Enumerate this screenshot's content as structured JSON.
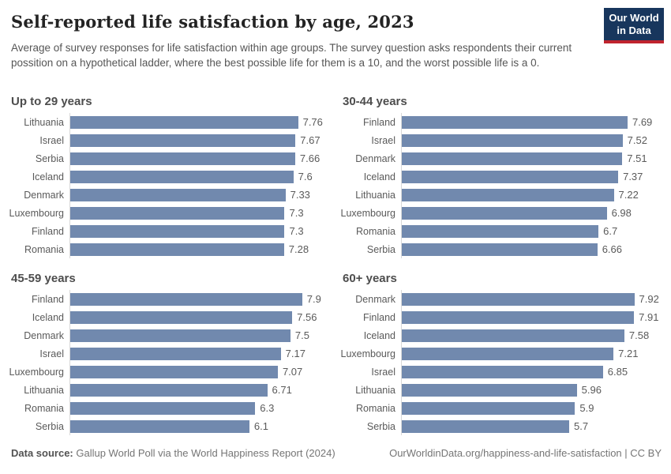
{
  "header": {
    "title": "Self-reported life satisfaction by age, 2023",
    "subtitle": "Average of survey responses for life satisfaction within age groups. The survey question asks respondents their current possition on a hypothetical ladder, where the best possible life for them is a 10, and the worst possible life is a 0.",
    "logo": {
      "line1": "Our World",
      "line2": "in Data"
    }
  },
  "chart_data": [
    {
      "type": "bar",
      "title": "Up to 29 years",
      "categories": [
        "Lithuania",
        "Israel",
        "Serbia",
        "Iceland",
        "Denmark",
        "Luxembourg",
        "Finland",
        "Romania"
      ],
      "values": [
        7.76,
        7.67,
        7.66,
        7.6,
        7.33,
        7.3,
        7.3,
        7.28
      ],
      "xlabel": "",
      "ylabel": "",
      "xlim": [
        0,
        8.9
      ],
      "grid": false,
      "orientation": "horizontal"
    },
    {
      "type": "bar",
      "title": "30-44 years",
      "categories": [
        "Finland",
        "Israel",
        "Denmark",
        "Iceland",
        "Lithuania",
        "Luxembourg",
        "Romania",
        "Serbia"
      ],
      "values": [
        7.69,
        7.52,
        7.51,
        7.37,
        7.22,
        6.98,
        6.7,
        6.66
      ],
      "xlabel": "",
      "ylabel": "",
      "xlim": [
        0,
        8.9
      ],
      "grid": false,
      "orientation": "horizontal"
    },
    {
      "type": "bar",
      "title": "45-59 years",
      "categories": [
        "Finland",
        "Iceland",
        "Denmark",
        "Israel",
        "Luxembourg",
        "Lithuania",
        "Romania",
        "Serbia"
      ],
      "values": [
        7.9,
        7.56,
        7.5,
        7.17,
        7.07,
        6.71,
        6.3,
        6.1
      ],
      "xlabel": "",
      "ylabel": "",
      "xlim": [
        0,
        8.9
      ],
      "grid": false,
      "orientation": "horizontal"
    },
    {
      "type": "bar",
      "title": "60+ years",
      "categories": [
        "Denmark",
        "Finland",
        "Iceland",
        "Luxembourg",
        "Israel",
        "Lithuania",
        "Romania",
        "Serbia"
      ],
      "values": [
        7.92,
        7.91,
        7.58,
        7.21,
        6.85,
        5.96,
        5.9,
        5.7
      ],
      "xlabel": "",
      "ylabel": "",
      "xlim": [
        0,
        8.9
      ],
      "grid": false,
      "orientation": "horizontal"
    }
  ],
  "colors": {
    "bar": "#7189ae",
    "axis_line": "#d9d9d9",
    "logo_bg": "#18365d",
    "logo_red": "#c0242e"
  },
  "footer": {
    "source_label": "Data source:",
    "source_text": " Gallup World Poll via the World Happiness Report (2024)",
    "right_text": "OurWorldinData.org/happiness-and-life-satisfaction | CC BY"
  }
}
